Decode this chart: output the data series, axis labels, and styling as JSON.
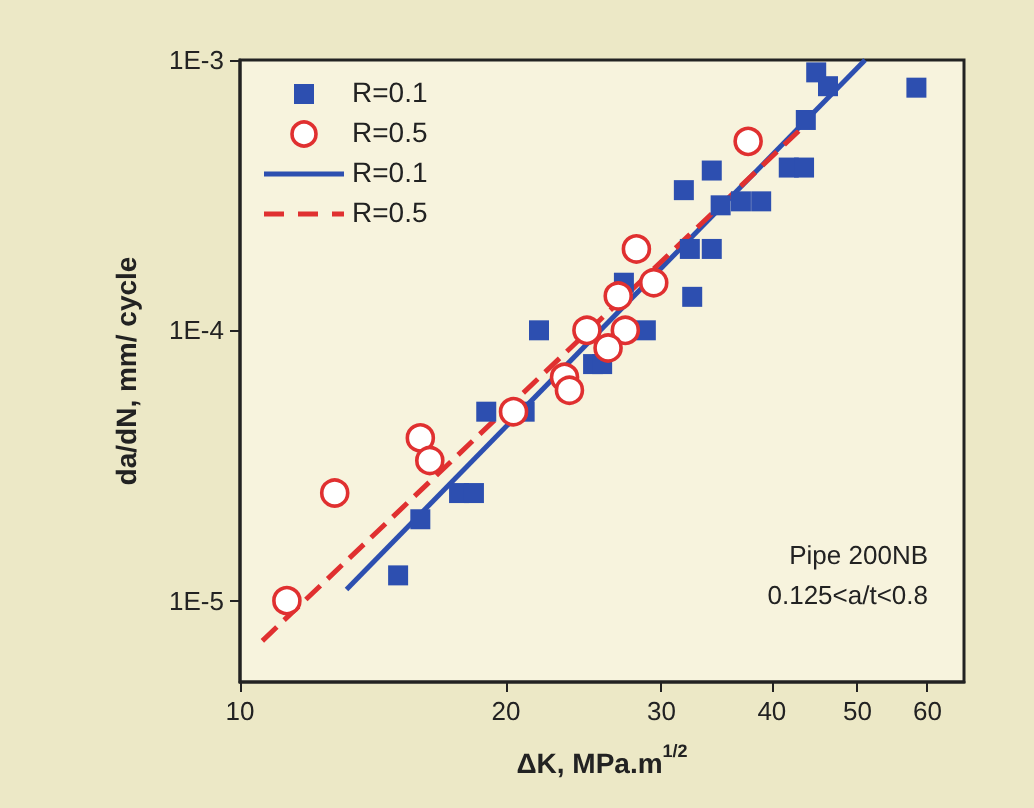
{
  "chart_data": {
    "type": "scatter",
    "xlabel": "ΔK, MPa.m$^{1/2}$",
    "ylabel": "da/dN, mm/ cycle",
    "log": "xy",
    "xlim": [
      10,
      66
    ],
    "ylim": [
      5e-06,
      0.001
    ],
    "xticks": [
      10,
      20,
      30,
      40,
      50,
      60
    ],
    "yticks": [
      {
        "value": 1e-05,
        "label": "1E-5"
      },
      {
        "value": 0.0001,
        "label": "1E-4"
      },
      {
        "value": 0.001,
        "label": "1E-3"
      }
    ],
    "legend": "top left",
    "grid": false,
    "annotations": [
      "Pipe 200NB",
      "0.125<a/t<0.8"
    ],
    "series": [
      {
        "name": "R=0.1",
        "marker": "square",
        "color": "#2d4fb0",
        "x": [
          44.9,
          46.3,
          43.7,
          41.8,
          43.5,
          34.2,
          31.8,
          35.0,
          36.9,
          38.9,
          32.3,
          34.2,
          32.5,
          27.2,
          21.8,
          28.8,
          25.1,
          25.7,
          19.0,
          21.0,
          17.7,
          18.4,
          16.0,
          15.1,
          58.3
        ],
        "values": [
          0.0009,
          0.0008,
          0.0006,
          0.0004,
          0.0004,
          0.00039,
          0.00033,
          0.00029,
          0.0003,
          0.0003,
          0.0002,
          0.0002,
          0.000133,
          0.00015,
          0.0001,
          0.0001,
          7.5e-05,
          7.5e-05,
          5e-05,
          5e-05,
          2.5e-05,
          2.5e-05,
          2e-05,
          1.24e-05,
          0.00079
        ]
      },
      {
        "name": "R=0.5",
        "marker": "circle",
        "color": "#e03030",
        "x": [
          37.6,
          28.1,
          29.4,
          26.8,
          24.7,
          27.3,
          26.1,
          23.3,
          23.6,
          20.4,
          16.0,
          16.4,
          12.8,
          11.3
        ],
        "values": [
          0.0005,
          0.0002,
          0.00015,
          0.000134,
          0.0001,
          0.0001,
          8.6e-05,
          6.7e-05,
          6e-05,
          5e-05,
          4e-05,
          3.3e-05,
          2.5e-05,
          1e-05
        ]
      },
      {
        "name": "R=0.1",
        "type": "line",
        "marker": "none",
        "line_style": "solid",
        "color": "#2d4fb0",
        "x": [
          13.2,
          51
        ],
        "values": [
          1.1e-05,
          0.001
        ]
      },
      {
        "name": "R=0.5",
        "type": "line",
        "marker": "none",
        "line_style": "dashed",
        "color": "#e03030",
        "x": [
          10.6,
          43.0
        ],
        "values": [
          7.1e-06,
          0.00055
        ]
      }
    ]
  }
}
